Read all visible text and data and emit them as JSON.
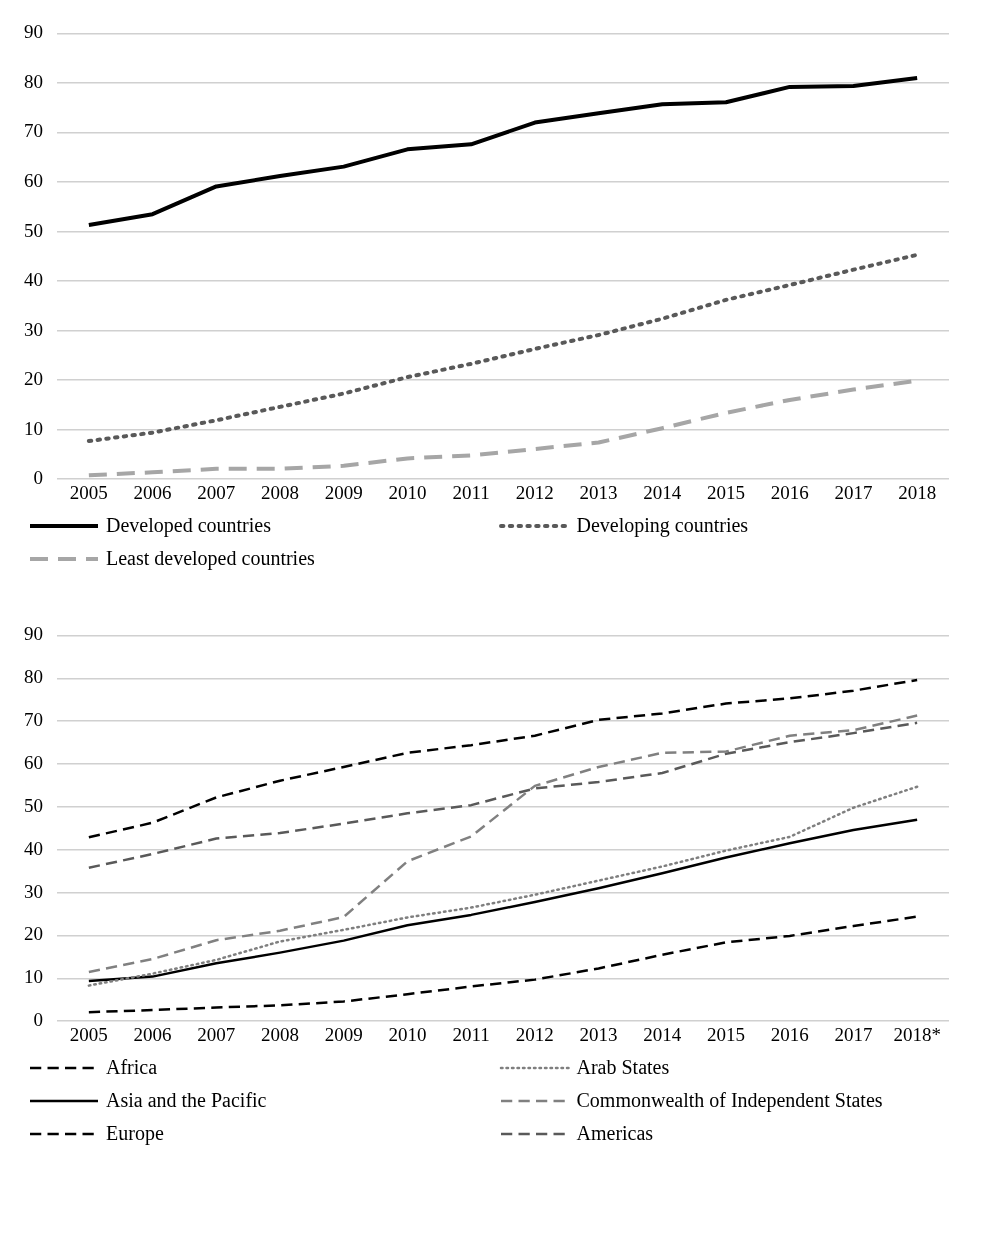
{
  "chart_data": [
    {
      "type": "line",
      "categories": [
        "2005",
        "2006",
        "2007",
        "2008",
        "2009",
        "2010",
        "2011",
        "2012",
        "2013",
        "2014",
        "2015",
        "2016",
        "2017",
        "2018"
      ],
      "ylim": [
        0,
        90
      ],
      "yticks": [
        0,
        10,
        20,
        30,
        40,
        50,
        60,
        70,
        80,
        90
      ],
      "grid": "y",
      "legend": "bottom",
      "marker": "none",
      "series": [
        {
          "name": "Developed countries",
          "color": "#000000",
          "line_style": "solid",
          "values": [
            51.3,
            53.5,
            59.1,
            61.2,
            63.1,
            66.6,
            67.6,
            72.0,
            73.9,
            75.7,
            76.1,
            79.2,
            79.4,
            81.0
          ]
        },
        {
          "name": "Developing countries",
          "color": "#595959",
          "line_style": "dotted",
          "values": [
            7.7,
            9.4,
            11.9,
            14.6,
            17.3,
            20.6,
            23.3,
            26.3,
            29.1,
            32.4,
            36.2,
            39.2,
            42.3,
            45.3
          ]
        },
        {
          "name": "Least developed countries",
          "color": "#a6a6a6",
          "line_style": "dashed",
          "values": [
            0.8,
            1.4,
            2.1,
            2.1,
            2.7,
            4.2,
            4.8,
            6.1,
            7.4,
            10.3,
            13.4,
            16.0,
            18.1,
            19.9
          ]
        }
      ]
    },
    {
      "type": "line",
      "categories": [
        "2005",
        "2006",
        "2007",
        "2008",
        "2009",
        "2010",
        "2011",
        "2012",
        "2013",
        "2014",
        "2015",
        "2016",
        "2017",
        "2018*"
      ],
      "ylim": [
        0,
        90
      ],
      "yticks": [
        0,
        10,
        20,
        30,
        40,
        50,
        60,
        70,
        80,
        90
      ],
      "grid": "y",
      "legend": "bottom",
      "marker": "none",
      "series": [
        {
          "name": "Africa",
          "color": "#000000",
          "line_style": "dashed",
          "values": [
            2.1,
            2.6,
            3.2,
            3.7,
            4.6,
            6.3,
            8.1,
            9.7,
            12.3,
            15.5,
            18.4,
            19.9,
            22.2,
            24.4
          ]
        },
        {
          "name": "Arab States",
          "color": "#7f7f7f",
          "line_style": "dotted",
          "values": [
            8.3,
            11.1,
            14.3,
            18.6,
            21.3,
            24.2,
            26.5,
            29.5,
            32.8,
            36.1,
            39.8,
            43.0,
            49.8,
            54.7
          ]
        },
        {
          "name": "Asia and the Pacific",
          "color": "#000000",
          "line_style": "solid",
          "values": [
            9.4,
            10.4,
            13.5,
            16.0,
            18.8,
            22.4,
            24.8,
            27.8,
            31.0,
            34.5,
            38.2,
            41.5,
            44.6,
            47.0
          ]
        },
        {
          "name": "Commonwealth of Independent States",
          "color": "#808080",
          "line_style": "dashed",
          "values": [
            11.5,
            14.5,
            18.9,
            21.1,
            24.3,
            37.3,
            43.1,
            54.9,
            59.3,
            62.6,
            62.9,
            66.6,
            67.9,
            71.3
          ]
        },
        {
          "name": "Europe",
          "color": "#000000",
          "line_style": "dashed",
          "values": [
            42.9,
            46.3,
            52.2,
            56.1,
            59.3,
            62.6,
            64.4,
            66.6,
            70.3,
            71.8,
            74.1,
            75.3,
            77.1,
            79.6
          ]
        },
        {
          "name": "Americas",
          "color": "#595959",
          "line_style": "dashed",
          "values": [
            35.8,
            39.0,
            42.6,
            43.9,
            46.1,
            48.5,
            50.4,
            54.3,
            55.8,
            57.9,
            62.4,
            65.1,
            67.2,
            69.6
          ]
        }
      ]
    }
  ]
}
